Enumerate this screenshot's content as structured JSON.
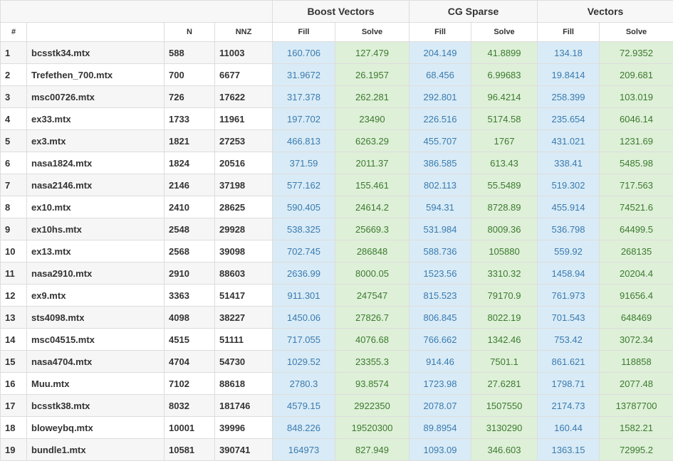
{
  "groups": [
    "Boost Vectors",
    "CG Sparse",
    "Vectors"
  ],
  "columns": {
    "index": "#",
    "n": "N",
    "nnz": "NNZ",
    "fill": "Fill",
    "solve": "Solve"
  },
  "rows": [
    {
      "idx": "1",
      "name": "bcsstk34.mtx",
      "n": "588",
      "nnz": "11003",
      "vals": [
        "160.706",
        "127.479",
        "204.149",
        "41.8899",
        "134.18",
        "72.9352"
      ]
    },
    {
      "idx": "2",
      "name": "Trefethen_700.mtx",
      "n": "700",
      "nnz": "6677",
      "vals": [
        "31.9672",
        "26.1957",
        "68.456",
        "6.99683",
        "19.8414",
        "209.681"
      ]
    },
    {
      "idx": "3",
      "name": "msc00726.mtx",
      "n": "726",
      "nnz": "17622",
      "vals": [
        "317.378",
        "262.281",
        "292.801",
        "96.4214",
        "258.399",
        "103.019"
      ]
    },
    {
      "idx": "4",
      "name": "ex33.mtx",
      "n": "1733",
      "nnz": "11961",
      "vals": [
        "197.702",
        "23490",
        "226.516",
        "5174.58",
        "235.654",
        "6046.14"
      ]
    },
    {
      "idx": "5",
      "name": "ex3.mtx",
      "n": "1821",
      "nnz": "27253",
      "vals": [
        "466.813",
        "6263.29",
        "455.707",
        "1767",
        "431.021",
        "1231.69"
      ]
    },
    {
      "idx": "6",
      "name": "nasa1824.mtx",
      "n": "1824",
      "nnz": "20516",
      "vals": [
        "371.59",
        "2011.37",
        "386.585",
        "613.43",
        "338.41",
        "5485.98"
      ]
    },
    {
      "idx": "7",
      "name": "nasa2146.mtx",
      "n": "2146",
      "nnz": "37198",
      "vals": [
        "577.162",
        "155.461",
        "802.113",
        "55.5489",
        "519.302",
        "717.563"
      ]
    },
    {
      "idx": "8",
      "name": "ex10.mtx",
      "n": "2410",
      "nnz": "28625",
      "vals": [
        "590.405",
        "24614.2",
        "594.31",
        "8728.89",
        "455.914",
        "74521.6"
      ]
    },
    {
      "idx": "9",
      "name": "ex10hs.mtx",
      "n": "2548",
      "nnz": "29928",
      "vals": [
        "538.325",
        "25669.3",
        "531.984",
        "8009.36",
        "536.798",
        "64499.5"
      ]
    },
    {
      "idx": "10",
      "name": "ex13.mtx",
      "n": "2568",
      "nnz": "39098",
      "vals": [
        "702.745",
        "286848",
        "588.736",
        "105880",
        "559.92",
        "268135"
      ]
    },
    {
      "idx": "11",
      "name": "nasa2910.mtx",
      "n": "2910",
      "nnz": "88603",
      "vals": [
        "2636.99",
        "8000.05",
        "1523.56",
        "3310.32",
        "1458.94",
        "20204.4"
      ]
    },
    {
      "idx": "12",
      "name": "ex9.mtx",
      "n": "3363",
      "nnz": "51417",
      "vals": [
        "911.301",
        "247547",
        "815.523",
        "79170.9",
        "761.973",
        "91656.4"
      ]
    },
    {
      "idx": "13",
      "name": "sts4098.mtx",
      "n": "4098",
      "nnz": "38227",
      "vals": [
        "1450.06",
        "27826.7",
        "806.845",
        "8022.19",
        "701.543",
        "648469"
      ]
    },
    {
      "idx": "14",
      "name": "msc04515.mtx",
      "n": "4515",
      "nnz": "51111",
      "vals": [
        "717.055",
        "4076.68",
        "766.662",
        "1342.46",
        "753.42",
        "3072.34"
      ]
    },
    {
      "idx": "15",
      "name": "nasa4704.mtx",
      "n": "4704",
      "nnz": "54730",
      "vals": [
        "1029.52",
        "23355.3",
        "914.46",
        "7501.1",
        "861.621",
        "118858"
      ]
    },
    {
      "idx": "16",
      "name": "Muu.mtx",
      "n": "7102",
      "nnz": "88618",
      "vals": [
        "2780.3",
        "93.8574",
        "1723.98",
        "27.6281",
        "1798.71",
        "2077.48"
      ]
    },
    {
      "idx": "17",
      "name": "bcsstk38.mtx",
      "n": "8032",
      "nnz": "181746",
      "vals": [
        "4579.15",
        "2922350",
        "2078.07",
        "1507550",
        "2174.73",
        "13787700"
      ]
    },
    {
      "idx": "18",
      "name": "bloweybq.mtx",
      "n": "10001",
      "nnz": "39996",
      "vals": [
        "848.226",
        "19520300",
        "89.8954",
        "3130290",
        "160.44",
        "1582.21"
      ]
    },
    {
      "idx": "19",
      "name": "bundle1.mtx",
      "n": "10581",
      "nnz": "390741",
      "vals": [
        "164973",
        "827.949",
        "1093.09",
        "346.603",
        "1363.15",
        "72995.2"
      ]
    }
  ]
}
